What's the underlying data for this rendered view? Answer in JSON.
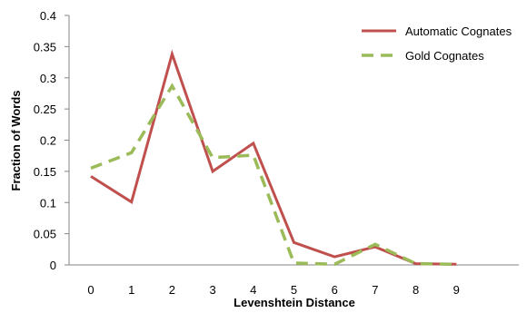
{
  "chart_data": {
    "type": "line",
    "x": [
      0,
      1,
      2,
      3,
      4,
      5,
      6,
      7,
      8,
      9
    ],
    "series": [
      {
        "name": "Automatic Cognates",
        "color": "#c0504d",
        "dash": "solid",
        "values": [
          0.142,
          0.101,
          0.338,
          0.15,
          0.195,
          0.036,
          0.013,
          0.029,
          0.002,
          0.001
        ]
      },
      {
        "name": "Gold Cognates",
        "color": "#9bbb59",
        "dash": "dashed",
        "values": [
          0.155,
          0.18,
          0.287,
          0.172,
          0.176,
          0.003,
          0.001,
          0.033,
          0.002,
          0.001
        ]
      }
    ],
    "xlabel": "Levenshtein Distance",
    "ylabel": "Fraction of Words",
    "ylim": [
      0,
      0.4
    ],
    "yticks": [
      "0",
      "0.05",
      "0.1",
      "0.15",
      "0.2",
      "0.25",
      "0.3",
      "0.35",
      "0.4"
    ],
    "xticks": [
      "0",
      "1",
      "2",
      "3",
      "4",
      "5",
      "6",
      "7",
      "8",
      "9"
    ],
    "grid": false,
    "legend_position": "top-right"
  }
}
